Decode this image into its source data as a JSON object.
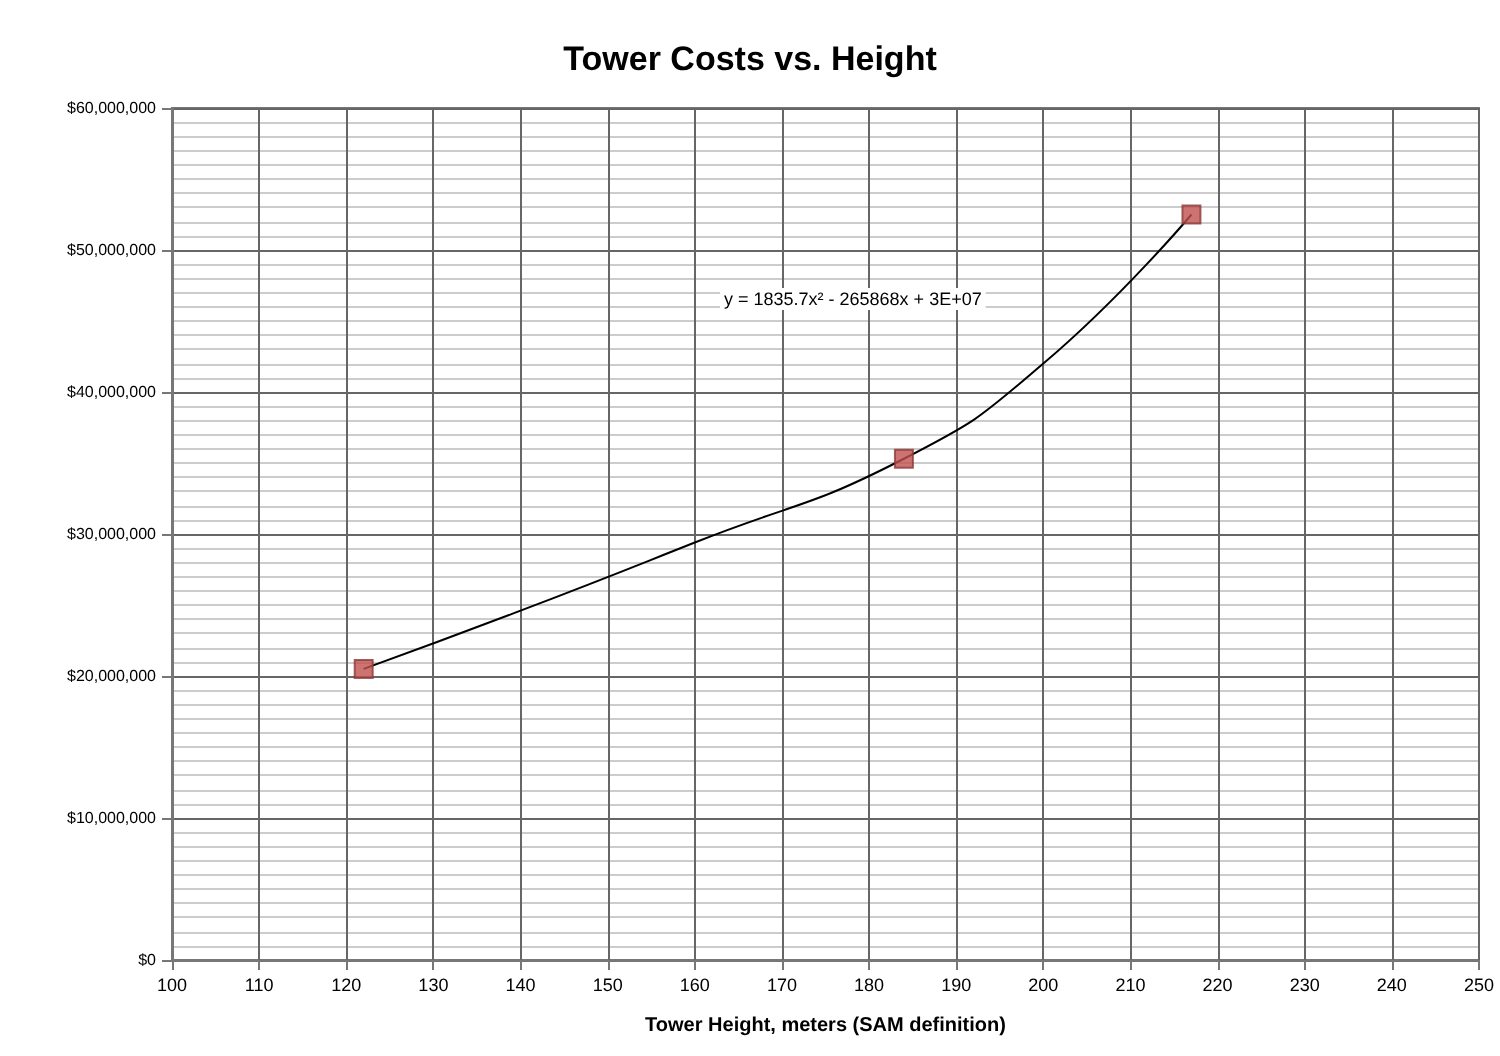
{
  "chart_data": {
    "type": "scatter",
    "title": "Tower Costs vs. Height",
    "xlabel": "Tower Height, meters (SAM definition)",
    "annotations": [
      "y = 1835.7x² - 265868x + 3E+07"
    ],
    "x": [
      122,
      184,
      217
    ],
    "series": [
      {
        "color": "#c0504d",
        "marker": "square",
        "values": [
          20500000,
          35300000,
          52500000
        ]
      },
      {
        "type": "line",
        "color": "#000000",
        "marker": "none",
        "x": [
          122,
          140,
          160,
          184,
          200,
          217
        ],
        "values": [
          20500000,
          24600000,
          29400000,
          35300000,
          42000000,
          52500000
        ]
      }
    ],
    "xlim": [
      100,
      250
    ],
    "xticks": [
      100,
      110,
      120,
      130,
      140,
      150,
      160,
      170,
      180,
      190,
      200,
      210,
      220,
      230,
      240,
      250
    ],
    "ylim": [
      0,
      60000000
    ],
    "yticks": [
      {
        "value": 0,
        "label": "$0"
      },
      {
        "value": 10000000,
        "label": "$10,000,000"
      },
      {
        "value": 20000000,
        "label": "$20,000,000"
      },
      {
        "value": 30000000,
        "label": "$30,000,000"
      },
      {
        "value": 40000000,
        "label": "$40,000,000"
      },
      {
        "value": 50000000,
        "label": "$50,000,000"
      },
      {
        "value": 60000000,
        "label": "$60,000,000"
      }
    ],
    "grid": true
  }
}
